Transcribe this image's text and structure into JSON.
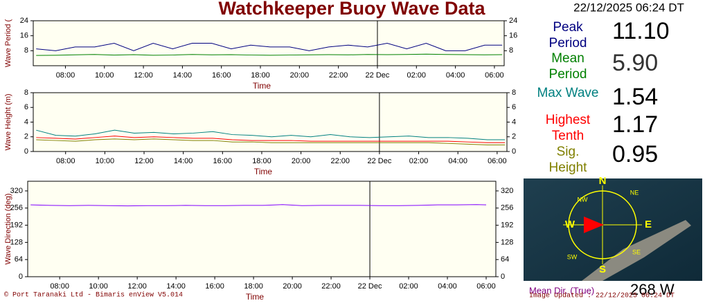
{
  "header": {
    "title": "Watchkeeper Buoy Wave Data",
    "datetime": "22/12/2025 06:24 DT"
  },
  "readings": [
    "11.10",
    "5.90",
    "1.54",
    "1.17",
    "0.95"
  ],
  "chart_data": [
    {
      "type": "line",
      "ylabel": "Wave Period (",
      "xlabel": "Time",
      "x": [
        6.5,
        7.5,
        8.5,
        9.5,
        10.5,
        11.5,
        12.5,
        13.5,
        14.5,
        15.5,
        16.5,
        17.5,
        18.5,
        19.5,
        20.5,
        21.5,
        22.5,
        23.5,
        24.5,
        25.5,
        26.5,
        27.5,
        28.5,
        29.5,
        30.4
      ],
      "xlim": [
        6.35,
        30.5
      ],
      "xticks": [
        {
          "value": 8,
          "label": "08:00"
        },
        {
          "value": 10,
          "label": "10:00"
        },
        {
          "value": 12,
          "label": "12:00"
        },
        {
          "value": 14,
          "label": "14:00"
        },
        {
          "value": 16,
          "label": "16:00"
        },
        {
          "value": 18,
          "label": "18:00"
        },
        {
          "value": 20,
          "label": "20:00"
        },
        {
          "value": 22,
          "label": "22:00"
        },
        {
          "value": 24,
          "label": "22 Dec"
        },
        {
          "value": 26,
          "label": "02:00"
        },
        {
          "value": 28,
          "label": "04:00"
        },
        {
          "value": 30,
          "label": "06:00"
        }
      ],
      "day_divider": 24,
      "ylim": [
        0,
        24
      ],
      "yticks": [
        8,
        16,
        24
      ],
      "series": [
        {
          "name": "Peak Period",
          "color": "#000080",
          "values": [
            9,
            8,
            10,
            10,
            12,
            8,
            12,
            9,
            12,
            12,
            9,
            11,
            10,
            10,
            8,
            10,
            11,
            10,
            12,
            9,
            12,
            8,
            8,
            11,
            11
          ]
        },
        {
          "name": "Mean Period",
          "color": "#008000",
          "values": [
            5.5,
            5.6,
            5.8,
            6,
            5.7,
            5.9,
            5.6,
            5.7,
            6,
            5.8,
            5.9,
            5.7,
            5.6,
            5.7,
            5.8,
            5.9,
            5.8,
            6,
            5.9,
            6,
            6.2,
            6,
            5.9,
            5.8,
            5.9
          ]
        }
      ]
    },
    {
      "type": "line",
      "ylabel": "Wave Height (m)",
      "xlabel": "Time",
      "x": [
        6.5,
        7.5,
        8.5,
        9.5,
        10.5,
        11.5,
        12.5,
        13.5,
        14.5,
        15.5,
        16.5,
        17.5,
        18.5,
        19.5,
        20.5,
        21.5,
        22.5,
        23.5,
        24.5,
        25.5,
        26.5,
        27.5,
        28.5,
        29.5,
        30.4
      ],
      "xlim": [
        6.35,
        30.5
      ],
      "xticks": [
        {
          "value": 8,
          "label": "08:00"
        },
        {
          "value": 10,
          "label": "10:00"
        },
        {
          "value": 12,
          "label": "12:00"
        },
        {
          "value": 14,
          "label": "14:00"
        },
        {
          "value": 16,
          "label": "16:00"
        },
        {
          "value": 18,
          "label": "18:00"
        },
        {
          "value": 20,
          "label": "20:00"
        },
        {
          "value": 22,
          "label": "22:00"
        },
        {
          "value": 24,
          "label": "22 Dec"
        },
        {
          "value": 26,
          "label": "02:00"
        },
        {
          "value": 28,
          "label": "04:00"
        },
        {
          "value": 30,
          "label": "06:00"
        }
      ],
      "day_divider": 24,
      "ylim": [
        0,
        8
      ],
      "yticks": [
        0,
        2,
        4,
        6,
        8
      ],
      "series": [
        {
          "name": "Max Wave",
          "color": "#008080",
          "values": [
            2.9,
            2.2,
            2.1,
            2.4,
            2.9,
            2.5,
            2.6,
            2.4,
            2.5,
            2.7,
            2.3,
            2.2,
            2.0,
            2.2,
            2.0,
            2.3,
            2.0,
            1.9,
            2.0,
            2.1,
            1.9,
            1.9,
            1.8,
            1.6,
            1.6
          ]
        },
        {
          "name": "Highest Tenth",
          "color": "#ff0000",
          "values": [
            1.9,
            1.8,
            1.7,
            1.9,
            2.1,
            1.9,
            2.0,
            1.9,
            1.8,
            1.8,
            1.6,
            1.5,
            1.5,
            1.5,
            1.4,
            1.4,
            1.4,
            1.4,
            1.4,
            1.4,
            1.4,
            1.4,
            1.3,
            1.2,
            1.2
          ]
        },
        {
          "name": "Sig. Height",
          "color": "#808000",
          "values": [
            1.6,
            1.5,
            1.4,
            1.6,
            1.7,
            1.6,
            1.7,
            1.6,
            1.5,
            1.5,
            1.3,
            1.3,
            1.2,
            1.2,
            1.2,
            1.2,
            1.2,
            1.2,
            1.2,
            1.2,
            1.2,
            1.1,
            1.0,
            0.9,
            0.9
          ]
        }
      ]
    },
    {
      "type": "line",
      "ylabel": "Wave Direction (deg)",
      "xlabel": "Time",
      "x": [
        6.5,
        7.5,
        8.5,
        9.5,
        10.5,
        11.5,
        12.5,
        13.5,
        14.5,
        15.5,
        16.5,
        17.5,
        18.5,
        19.5,
        20.5,
        21.5,
        22.5,
        23.5,
        24.5,
        25.5,
        26.5,
        27.5,
        28.5,
        29.5,
        30.0
      ],
      "xlim": [
        6.35,
        30.5
      ],
      "xticks": [
        {
          "value": 8,
          "label": "08:00"
        },
        {
          "value": 10,
          "label": "10:00"
        },
        {
          "value": 12,
          "label": "12:00"
        },
        {
          "value": 14,
          "label": "14:00"
        },
        {
          "value": 16,
          "label": "16:00"
        },
        {
          "value": 18,
          "label": "18:00"
        },
        {
          "value": 20,
          "label": "20:00"
        },
        {
          "value": 22,
          "label": "22:00"
        },
        {
          "value": 24,
          "label": "22 Dec"
        },
        {
          "value": 26,
          "label": "02:00"
        },
        {
          "value": 28,
          "label": "04:00"
        },
        {
          "value": 30,
          "label": "06:00"
        }
      ],
      "day_divider": 24,
      "ylim": [
        0,
        356
      ],
      "yticks": [
        0,
        64,
        128,
        192,
        256,
        320
      ],
      "series": [
        {
          "color": "#8000ff",
          "values": [
            268,
            266,
            265,
            266,
            265,
            264,
            265,
            265,
            266,
            265,
            265,
            266,
            266,
            269,
            265,
            266,
            266,
            266,
            265,
            265,
            266,
            268,
            268,
            269,
            268
          ]
        }
      ]
    }
  ],
  "compass": {
    "labels": [
      "N",
      "NE",
      "E",
      "SE",
      "S",
      "SW",
      "W",
      "NW"
    ]
  },
  "footer": {
    "copyright": "© Port Taranaki Ltd - Bimaris enView V5.014",
    "direction_label": "Mean Dir. (True)",
    "direction_value": "268 W",
    "updated": "Image Updated : 22/12/2025 06:24 DT"
  }
}
